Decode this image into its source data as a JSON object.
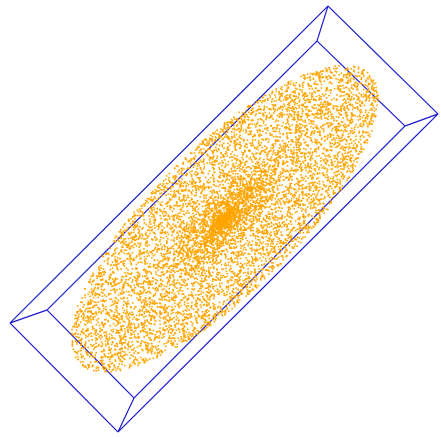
{
  "scene": {
    "background_color": "#ffffff",
    "bounding_box_color": "#1a1acc",
    "point_color": "#ffa500",
    "shape": "ellipsoid",
    "view": "3d-point-cloud",
    "point_density": "dense-center"
  }
}
